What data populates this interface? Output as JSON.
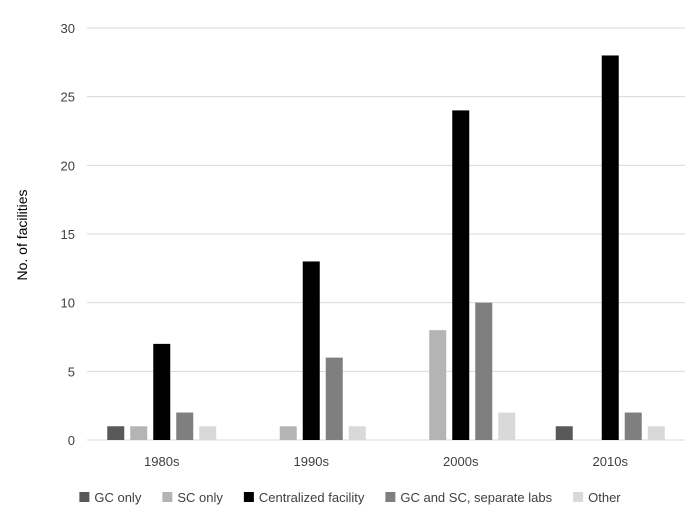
{
  "chart_data": {
    "type": "bar",
    "title": "",
    "xlabel": "",
    "ylabel": "No. of facilities",
    "ylim": [
      0,
      30
    ],
    "yticks": [
      0,
      5,
      10,
      15,
      20,
      25,
      30
    ],
    "categories": [
      "1980s",
      "1990s",
      "2000s",
      "2010s"
    ],
    "series": [
      {
        "name": "GC only",
        "color": "#595959",
        "values": [
          1,
          0,
          0,
          1
        ]
      },
      {
        "name": "SC only",
        "color": "#b4b4b4",
        "values": [
          1,
          1,
          8,
          0
        ]
      },
      {
        "name": "Centralized facility",
        "color": "#000000",
        "values": [
          7,
          13,
          24,
          28
        ]
      },
      {
        "name": "GC and SC, separate labs",
        "color": "#7f7f7f",
        "values": [
          2,
          6,
          10,
          2
        ]
      },
      {
        "name": "Other",
        "color": "#d9d9d9",
        "values": [
          1,
          1,
          2,
          1
        ]
      }
    ],
    "grid": true,
    "legend_position": "bottom"
  },
  "colors": {
    "gridline": "#d9d9d9",
    "axis_line": "#d9d9d9",
    "tick_text": "#404040",
    "background": "#ffffff"
  }
}
